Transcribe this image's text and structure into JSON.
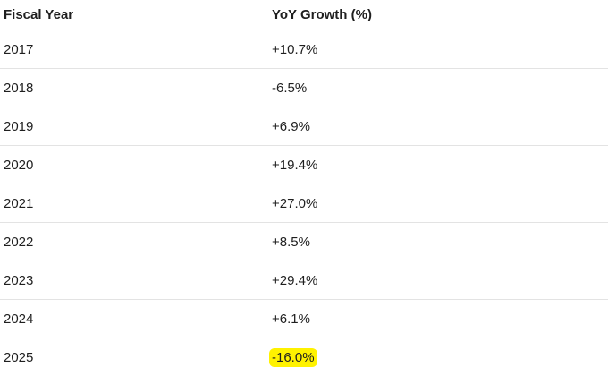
{
  "table": {
    "headers": {
      "year": "Fiscal Year",
      "growth": "YoY Growth (%)"
    },
    "highlight_color": "#fff200",
    "rows": [
      {
        "year": "2017",
        "growth": "+10.7%",
        "highlighted": false
      },
      {
        "year": "2018",
        "growth": "-6.5%",
        "highlighted": false
      },
      {
        "year": "2019",
        "growth": "+6.9%",
        "highlighted": false
      },
      {
        "year": "2020",
        "growth": "+19.4%",
        "highlighted": false
      },
      {
        "year": "2021",
        "growth": "+27.0%",
        "highlighted": false
      },
      {
        "year": "2022",
        "growth": "+8.5%",
        "highlighted": false
      },
      {
        "year": "2023",
        "growth": "+29.4%",
        "highlighted": false
      },
      {
        "year": "2024",
        "growth": "+6.1%",
        "highlighted": false
      },
      {
        "year": "2025",
        "growth": "-16.0%",
        "highlighted": true
      }
    ]
  }
}
